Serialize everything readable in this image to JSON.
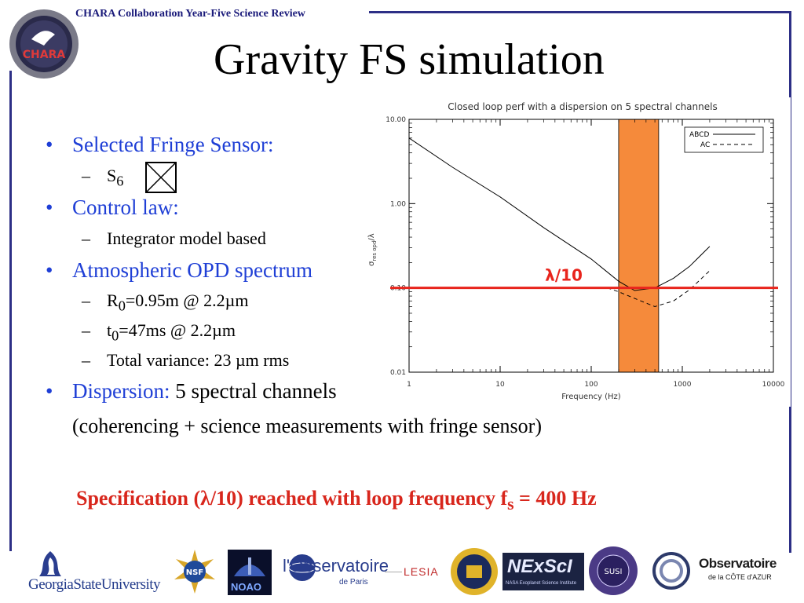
{
  "header": {
    "collab_title": "CHARA Collaboration Year-Five Science Review",
    "chara_logo_text": "CHARA"
  },
  "slide_title": "Gravity FS simulation",
  "bullets": {
    "b1_label": "Selected Fringe Sensor:",
    "b1_sub_text": "S",
    "b1_sub_sub": "6",
    "b2_label": "Control law:",
    "b2_sub": "Integrator model based",
    "b3_label": "Atmospheric OPD spectrum",
    "b3_sub1_a": "R",
    "b3_sub1_sub": "0",
    "b3_sub1_b": "=0.95m @ 2.2µm",
    "b3_sub2_a": "t",
    "b3_sub2_sub": "0",
    "b3_sub2_b": "=47ms @ 2.2µm",
    "b3_sub3": "Total variance: 23 µm rms",
    "b4_label": "Dispersion:",
    "b4_value": " 5 spectral channels",
    "b4_line2": "(coherencing + science measurements with fringe sensor)"
  },
  "spec": {
    "part1": "Specification (λ/10) reached with loop frequency f",
    "sub": "s",
    "part2": " = 400 Hz"
  },
  "chart_data": {
    "type": "line",
    "title": "Closed loop perf with a dispersion on 5 spectral channels",
    "xlabel": "Frequency (Hz)",
    "ylabel_main": "σ",
    "ylabel_sub": "res opd",
    "ylabel_tail": "/λ",
    "xscale": "log",
    "yscale": "log",
    "xlim": [
      1,
      10000
    ],
    "ylim": [
      0.01,
      10
    ],
    "x_ticks": [
      "1",
      "10",
      "100",
      "1000",
      "10000"
    ],
    "y_ticks": [
      "10.00",
      "1.00",
      "0.10",
      "0.01"
    ],
    "series": [
      {
        "name": "ABCD",
        "style": "solid",
        "x": [
          1,
          3,
          10,
          30,
          100,
          200,
          300,
          500,
          800,
          1200,
          2000
        ],
        "y": [
          6,
          2.7,
          1.2,
          0.52,
          0.22,
          0.12,
          0.093,
          0.1,
          0.13,
          0.18,
          0.31
        ]
      },
      {
        "name": "AC",
        "style": "dashed",
        "x": [
          150,
          200,
          300,
          500,
          800,
          1200,
          2000
        ],
        "y": [
          0.1,
          0.09,
          0.075,
          0.06,
          0.07,
          0.095,
          0.16
        ]
      }
    ],
    "reference_line": {
      "y": 0.1,
      "label": "λ/10",
      "color": "#e8241c"
    },
    "band": {
      "x": [
        200,
        550
      ],
      "color": "#f58a3b"
    },
    "legend": "top-right"
  },
  "logos": {
    "gsu": "GeorgiaStateUniversity",
    "nsf": "NSF",
    "noao": "NOAO",
    "obs_paris_a": "l'Observatoire",
    "obs_paris_b": "de Paris",
    "lesia": "LESIA",
    "nexsci": "NExScI",
    "nexsci_sub": "NASA Exoplanet Science Institute",
    "susi": "SUSI",
    "oca_a": "Observatoire",
    "oca_b": "de la CÔTE d'AZUR"
  }
}
